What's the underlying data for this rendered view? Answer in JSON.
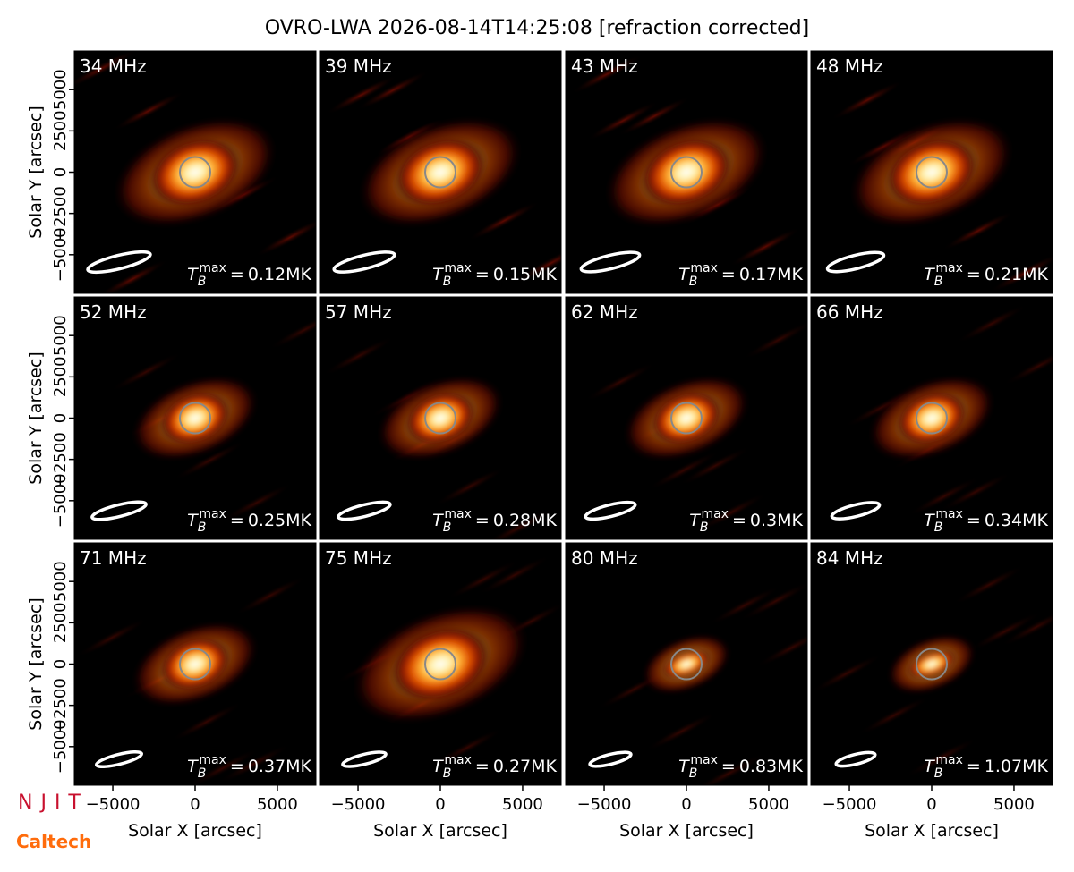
{
  "chart_data": {
    "type": "image-grid",
    "title": "OVRO-LWA 2026-08-14T14:25:08 [refraction corrected]",
    "xlabel": "Solar X [arcsec]",
    "ylabel": "Solar Y [arcsec]",
    "xlim": [
      -7340,
      7340
    ],
    "ylim": [
      -7340,
      7340
    ],
    "xticks": [
      {
        "value": -5000,
        "label": "−5000"
      },
      0,
      5000
    ],
    "yticks": [
      {
        "value": -5000,
        "label": "−5000"
      },
      {
        "value": -2500,
        "label": "−2500"
      },
      0,
      2500,
      5000
    ],
    "tb_symbol": "T",
    "tb_sub": "B",
    "tb_sup": "max",
    "tb_equals": "=",
    "panels": [
      {
        "label": "34 MHz",
        "tmax": "0.12MK"
      },
      {
        "label": "39 MHz",
        "tmax": "0.15MK"
      },
      {
        "label": "43 MHz",
        "tmax": "0.17MK"
      },
      {
        "label": "48 MHz",
        "tmax": "0.21MK"
      },
      {
        "label": "52 MHz",
        "tmax": "0.25MK"
      },
      {
        "label": "57 MHz",
        "tmax": "0.28MK"
      },
      {
        "label": "62 MHz",
        "tmax": "0.3MK"
      },
      {
        "label": "66 MHz",
        "tmax": "0.34MK"
      },
      {
        "label": "71 MHz",
        "tmax": "0.37MK"
      },
      {
        "label": "75 MHz",
        "tmax": "0.27MK"
      },
      {
        "label": "80 MHz",
        "tmax": "0.83MK"
      },
      {
        "label": "84 MHz",
        "tmax": "1.07MK"
      }
    ]
  },
  "logos": {
    "njit": "NJIT",
    "caltech": "Caltech"
  }
}
